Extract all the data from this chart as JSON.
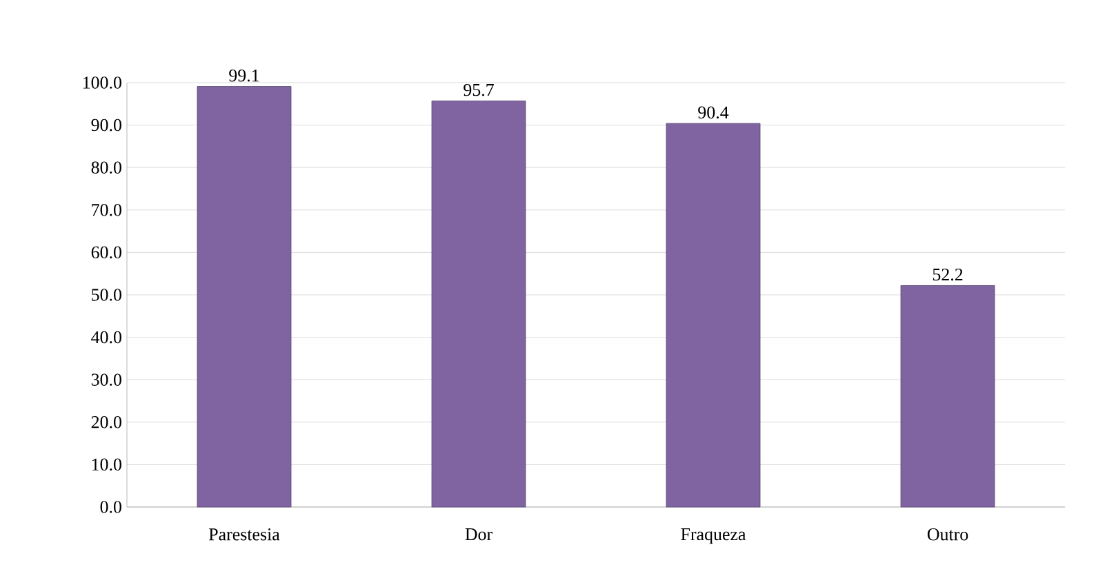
{
  "chart_data": {
    "type": "bar",
    "categories": [
      "Parestesia",
      "Dor",
      "Fraqueza",
      "Outro"
    ],
    "values": [
      99.1,
      95.7,
      90.4,
      52.2
    ],
    "color": "#8064a2",
    "ylim": [
      0,
      100
    ],
    "yticks": [
      {
        "value": 0,
        "label": "0.0"
      },
      {
        "value": 10,
        "label": "10.0"
      },
      {
        "value": 20,
        "label": "20.0"
      },
      {
        "value": 30,
        "label": "30.0"
      },
      {
        "value": 40,
        "label": "40.0"
      },
      {
        "value": 50,
        "label": "50.0"
      },
      {
        "value": 60,
        "label": "60.0"
      },
      {
        "value": 70,
        "label": "70.0"
      },
      {
        "value": 80,
        "label": "80.0"
      },
      {
        "value": 90,
        "label": "90.0"
      },
      {
        "value": 100,
        "label": "100.0"
      }
    ],
    "grid": "y",
    "data_labels": true
  }
}
